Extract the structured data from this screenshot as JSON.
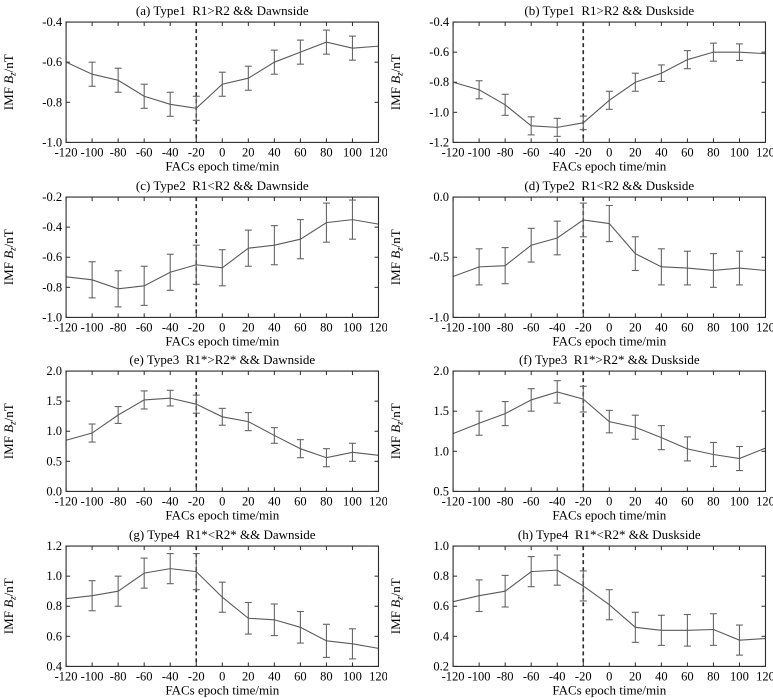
{
  "figure": {
    "background": "#ffffff",
    "axis_color": "#2b2b2b",
    "line_color": "#5a5a5a",
    "error_color": "#666666",
    "event_line_color": "#2b2b2b",
    "text_color": "#000000"
  },
  "chart_data": {
    "type": "line",
    "xlabel": "FACs epoch time/min",
    "ylabel": "IMF Bz/nT",
    "ylabel_parts": {
      "pre": "IMF ",
      "symbol": "B",
      "subscript": "z",
      "post": "/nT"
    },
    "x": [
      -120,
      -100,
      -80,
      -60,
      -40,
      -20,
      0,
      20,
      40,
      60,
      80,
      100,
      120
    ],
    "xlim": [
      -120,
      120
    ],
    "x_tick_labels": [
      "-120",
      "-100",
      "-80",
      "-60",
      "-40",
      "-20",
      "0",
      "20",
      "40",
      "60",
      "80",
      "100",
      "120"
    ],
    "event_line_x": -20,
    "grid": false,
    "legend": null,
    "panels": [
      {
        "id": "a",
        "title": "(a) Type1  R1>R2 && Dawnside",
        "ylim": [
          -1.0,
          -0.4
        ],
        "yticks": [
          -0.4,
          -0.6,
          -0.8,
          -1.0
        ],
        "y": [
          -0.6,
          -0.66,
          -0.69,
          -0.77,
          -0.81,
          -0.83,
          -0.71,
          -0.68,
          -0.6,
          -0.55,
          -0.5,
          -0.53,
          -0.52
        ],
        "yerr": [
          0,
          0.06,
          0.06,
          0.06,
          0.06,
          0.06,
          0.06,
          0.06,
          0.06,
          0.06,
          0.06,
          0.06,
          0
        ]
      },
      {
        "id": "b",
        "title": "(b) Type1  R1>R2 && Duskside",
        "ylim": [
          -1.2,
          -0.4
        ],
        "yticks": [
          -0.4,
          -0.6,
          -0.8,
          -1.0,
          -1.2
        ],
        "y": [
          -0.8,
          -0.85,
          -0.95,
          -1.09,
          -1.1,
          -1.07,
          -0.92,
          -0.8,
          -0.74,
          -0.65,
          -0.6,
          -0.6,
          -0.61
        ],
        "yerr": [
          0,
          0.06,
          0.07,
          0.06,
          0.06,
          0.045,
          0.06,
          0.06,
          0.055,
          0.06,
          0.06,
          0.055,
          0
        ]
      },
      {
        "id": "c",
        "title": "(c) Type2  R1<R2 && Dawnside",
        "ylim": [
          -1.0,
          -0.2
        ],
        "yticks": [
          -0.2,
          -0.4,
          -0.6,
          -0.8,
          -1.0
        ],
        "y": [
          -0.73,
          -0.75,
          -0.81,
          -0.79,
          -0.7,
          -0.65,
          -0.67,
          -0.54,
          -0.52,
          -0.48,
          -0.37,
          -0.35,
          -0.38
        ],
        "yerr": [
          0,
          0.12,
          0.12,
          0.13,
          0.12,
          0.13,
          0.12,
          0.12,
          0.13,
          0.13,
          0.13,
          0.13,
          0
        ]
      },
      {
        "id": "d",
        "title": "(d) Type2  R1<R2 && Duskside",
        "ylim": [
          -1.0,
          0.0
        ],
        "yticks": [
          0.0,
          -0.5,
          -1.0
        ],
        "y": [
          -0.66,
          -0.58,
          -0.57,
          -0.4,
          -0.34,
          -0.19,
          -0.22,
          -0.47,
          -0.58,
          -0.59,
          -0.61,
          -0.59,
          -0.61
        ],
        "yerr": [
          0,
          0.15,
          0.15,
          0.14,
          0.14,
          0.14,
          0.15,
          0.14,
          0.15,
          0.14,
          0.14,
          0.14,
          0
        ]
      },
      {
        "id": "e",
        "title": "(e) Type3  R1*>R2* && Dawnside",
        "ylim": [
          0.0,
          2.0
        ],
        "yticks": [
          2.0,
          1.5,
          1.0,
          0.5,
          0.0
        ],
        "y": [
          0.85,
          0.97,
          1.27,
          1.52,
          1.55,
          1.45,
          1.24,
          1.16,
          0.93,
          0.71,
          0.56,
          0.65,
          0.6
        ],
        "yerr": [
          0,
          0.15,
          0.14,
          0.15,
          0.13,
          0.15,
          0.14,
          0.15,
          0.13,
          0.15,
          0.15,
          0.15,
          0
        ]
      },
      {
        "id": "f",
        "title": "(f) Type3  R1*>R2* && Duskside",
        "ylim": [
          0.5,
          2.0
        ],
        "yticks": [
          2.0,
          1.5,
          1.0,
          0.5
        ],
        "y": [
          1.22,
          1.35,
          1.47,
          1.64,
          1.74,
          1.65,
          1.37,
          1.3,
          1.17,
          1.03,
          0.96,
          0.91,
          1.04
        ],
        "yerr": [
          0,
          0.15,
          0.15,
          0.14,
          0.14,
          0.16,
          0.14,
          0.15,
          0.15,
          0.15,
          0.15,
          0.15,
          0
        ]
      },
      {
        "id": "g",
        "title": "(g) Type4  R1*<R2* && Dawnside",
        "ylim": [
          0.4,
          1.2
        ],
        "yticks": [
          1.2,
          1.0,
          0.8,
          0.6,
          0.4
        ],
        "y": [
          0.85,
          0.87,
          0.9,
          1.02,
          1.05,
          1.03,
          0.86,
          0.72,
          0.71,
          0.66,
          0.57,
          0.55,
          0.52
        ],
        "yerr": [
          0,
          0.1,
          0.1,
          0.1,
          0.1,
          0.12,
          0.1,
          0.105,
          0.105,
          0.105,
          0.11,
          0.1,
          0
        ]
      },
      {
        "id": "h",
        "title": "(h) Type4  R1*<R2* && Duskside",
        "ylim": [
          0.2,
          1.0
        ],
        "yticks": [
          1.0,
          0.8,
          0.6,
          0.4,
          0.2
        ],
        "y": [
          0.63,
          0.67,
          0.7,
          0.83,
          0.84,
          0.735,
          0.61,
          0.46,
          0.44,
          0.44,
          0.445,
          0.375,
          0.385
        ],
        "yerr": [
          0,
          0.105,
          0.105,
          0.1,
          0.1,
          0.1,
          0.1,
          0.1,
          0.1,
          0.105,
          0.105,
          0.1,
          0
        ]
      }
    ]
  }
}
